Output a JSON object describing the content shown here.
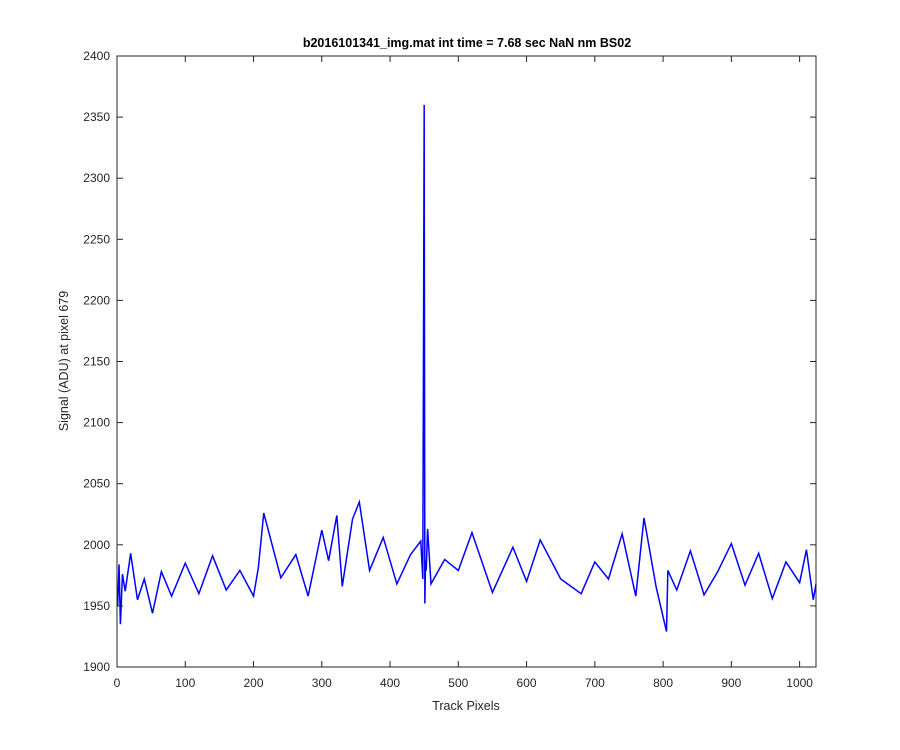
{
  "chart_data": {
    "type": "line",
    "title": "b2016101341_img.mat int time = 7.68 sec  NaN nm BS02",
    "xlabel": "Track Pixels",
    "ylabel": "Signal (ADU) at pixel 679",
    "xlim": [
      0,
      1024
    ],
    "ylim": [
      1900,
      2400
    ],
    "xticks": [
      0,
      100,
      200,
      300,
      400,
      500,
      600,
      700,
      800,
      900,
      1000
    ],
    "yticks": [
      1900,
      1950,
      2000,
      2050,
      2100,
      2150,
      2200,
      2250,
      2300,
      2350,
      2400
    ],
    "grid": false,
    "legend": "none",
    "series": [
      {
        "color": "#0000ff",
        "x": [
          1,
          3,
          5,
          8,
          12,
          20,
          30,
          40,
          52,
          65,
          80,
          100,
          120,
          140,
          160,
          180,
          200,
          207,
          215,
          240,
          262,
          280,
          300,
          310,
          322,
          330,
          345,
          355,
          370,
          390,
          410,
          430,
          445,
          448,
          450,
          451,
          452,
          453,
          455,
          460,
          480,
          500,
          520,
          550,
          580,
          600,
          620,
          650,
          680,
          700,
          720,
          740,
          760,
          772,
          790,
          805,
          807,
          820,
          840,
          860,
          880,
          900,
          920,
          940,
          960,
          980,
          1000,
          1010,
          1020,
          1024
        ],
        "y": [
          1950,
          1984,
          1935,
          1976,
          1962,
          1993,
          1955,
          1972,
          1944,
          1978,
          1958,
          1985,
          1960,
          1991,
          1963,
          1979,
          1958,
          1981,
          2026,
          1973,
          1992,
          1958,
          2012,
          1987,
          2024,
          1966,
          2021,
          2035,
          1979,
          2006,
          1968,
          1992,
          2003,
          1972,
          2360,
          1952,
          1987,
          1979,
          2013,
          1968,
          1988,
          1979,
          2010,
          1961,
          1998,
          1970,
          2004,
          1972,
          1960,
          1986,
          1972,
          2009,
          1958,
          2022,
          1965,
          1929,
          1979,
          1963,
          1995,
          1959,
          1978,
          2001,
          1967,
          1993,
          1956,
          1986,
          1969,
          1996,
          1955,
          1968
        ]
      }
    ]
  }
}
